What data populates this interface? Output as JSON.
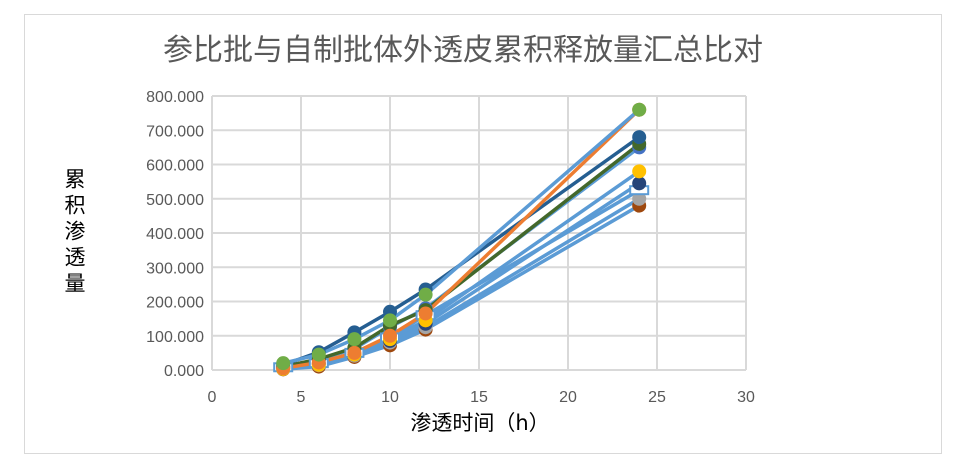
{
  "chart_data": {
    "type": "scatter",
    "title": "参比批与自制批体外透皮累积释放量汇总比对",
    "xlabel": "渗透时间（h）",
    "ylabel": "累积渗透量",
    "xlim": [
      0,
      30
    ],
    "ylim": [
      0,
      800
    ],
    "xticks": [
      0,
      5,
      10,
      15,
      20,
      25,
      30
    ],
    "yticks": [
      0,
      100,
      200,
      300,
      400,
      500,
      600,
      700,
      800
    ],
    "ytick_labels": [
      "0.000",
      "100.000",
      "200.000",
      "300.000",
      "400.000",
      "500.000",
      "600.000",
      "700.000",
      "800.000"
    ],
    "grid": true,
    "x": [
      4,
      6,
      8,
      10,
      12,
      24
    ],
    "series": [
      {
        "color": "#9E480E",
        "line": "#5B9BD5",
        "marker": "circle",
        "values": [
          2,
          10,
          38,
          72,
          118,
          480
        ]
      },
      {
        "color": "#A5A5A5",
        "line": "#5B9BD5",
        "marker": "circle",
        "values": [
          3,
          14,
          42,
          80,
          125,
          500
        ]
      },
      {
        "color": "#5B9BD5",
        "line": "#5B9BD5",
        "marker": "square-open",
        "values": [
          8,
          20,
          50,
          95,
          160,
          525
        ]
      },
      {
        "color": "#264478",
        "line": "#5B9BD5",
        "marker": "circle",
        "values": [
          4,
          18,
          45,
          85,
          135,
          545
        ]
      },
      {
        "color": "#FFC000",
        "line": "#5B9BD5",
        "marker": "circle",
        "values": [
          3,
          15,
          45,
          90,
          145,
          580
        ]
      },
      {
        "color": "#4472C4",
        "line": "#5B9BD5",
        "marker": "circle",
        "values": [
          8,
          30,
          62,
          125,
          180,
          650
        ]
      },
      {
        "color": "#43682B",
        "line": "#43682B",
        "marker": "circle",
        "values": [
          10,
          32,
          65,
          130,
          175,
          660
        ]
      },
      {
        "color": "#255E91",
        "line": "#255E91",
        "marker": "circle",
        "values": [
          15,
          52,
          110,
          170,
          235,
          680
        ]
      },
      {
        "color": "#ED7D31",
        "line": "#ED7D31",
        "marker": "circle",
        "values": [
          5,
          22,
          50,
          100,
          165,
          760
        ]
      },
      {
        "color": "#70AD47",
        "line": "#5B9BD5",
        "marker": "circle",
        "values": [
          20,
          45,
          90,
          145,
          220,
          760
        ]
      }
    ]
  }
}
